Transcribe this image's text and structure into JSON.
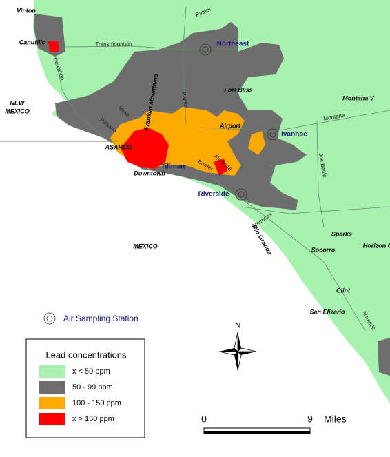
{
  "labels": [
    "Vinton",
    "Patriot",
    "Canutillo",
    "Transmountain",
    "Doniphan",
    "Northeast",
    "Fort Bliss",
    "Montana V",
    "NEW",
    "MEXICO",
    "Mesa",
    "Franklin Mountains",
    "Patriot",
    "Montana",
    "Paisano",
    "Airport",
    "Ivanhoe",
    "ASARCO",
    "Tillman",
    "Downtown",
    "Border",
    "Alameda",
    "Joe Battle",
    "Riverside",
    "Americas",
    "Rio Grande",
    "Sparks",
    "Horizon C",
    "MEXICO",
    "Socorro",
    "Clint",
    "San Elizario",
    "Alameda"
  ],
  "station_legend": "Air Sampling Station",
  "legend": {
    "title": "Lead concentrations",
    "items": [
      {
        "label": "x < 50 ppm",
        "color": "#a6f2ae"
      },
      {
        "label": "50 - 99 ppm",
        "color": "#6e6e6e"
      },
      {
        "label": "100 - 150 ppm",
        "color": "#ffaa00"
      },
      {
        "label": "x > 150 ppm",
        "color": "#ff0000"
      }
    ]
  },
  "north": "N",
  "scale": {
    "ticks": [
      0,
      9
    ],
    "unit": "Miles"
  }
}
